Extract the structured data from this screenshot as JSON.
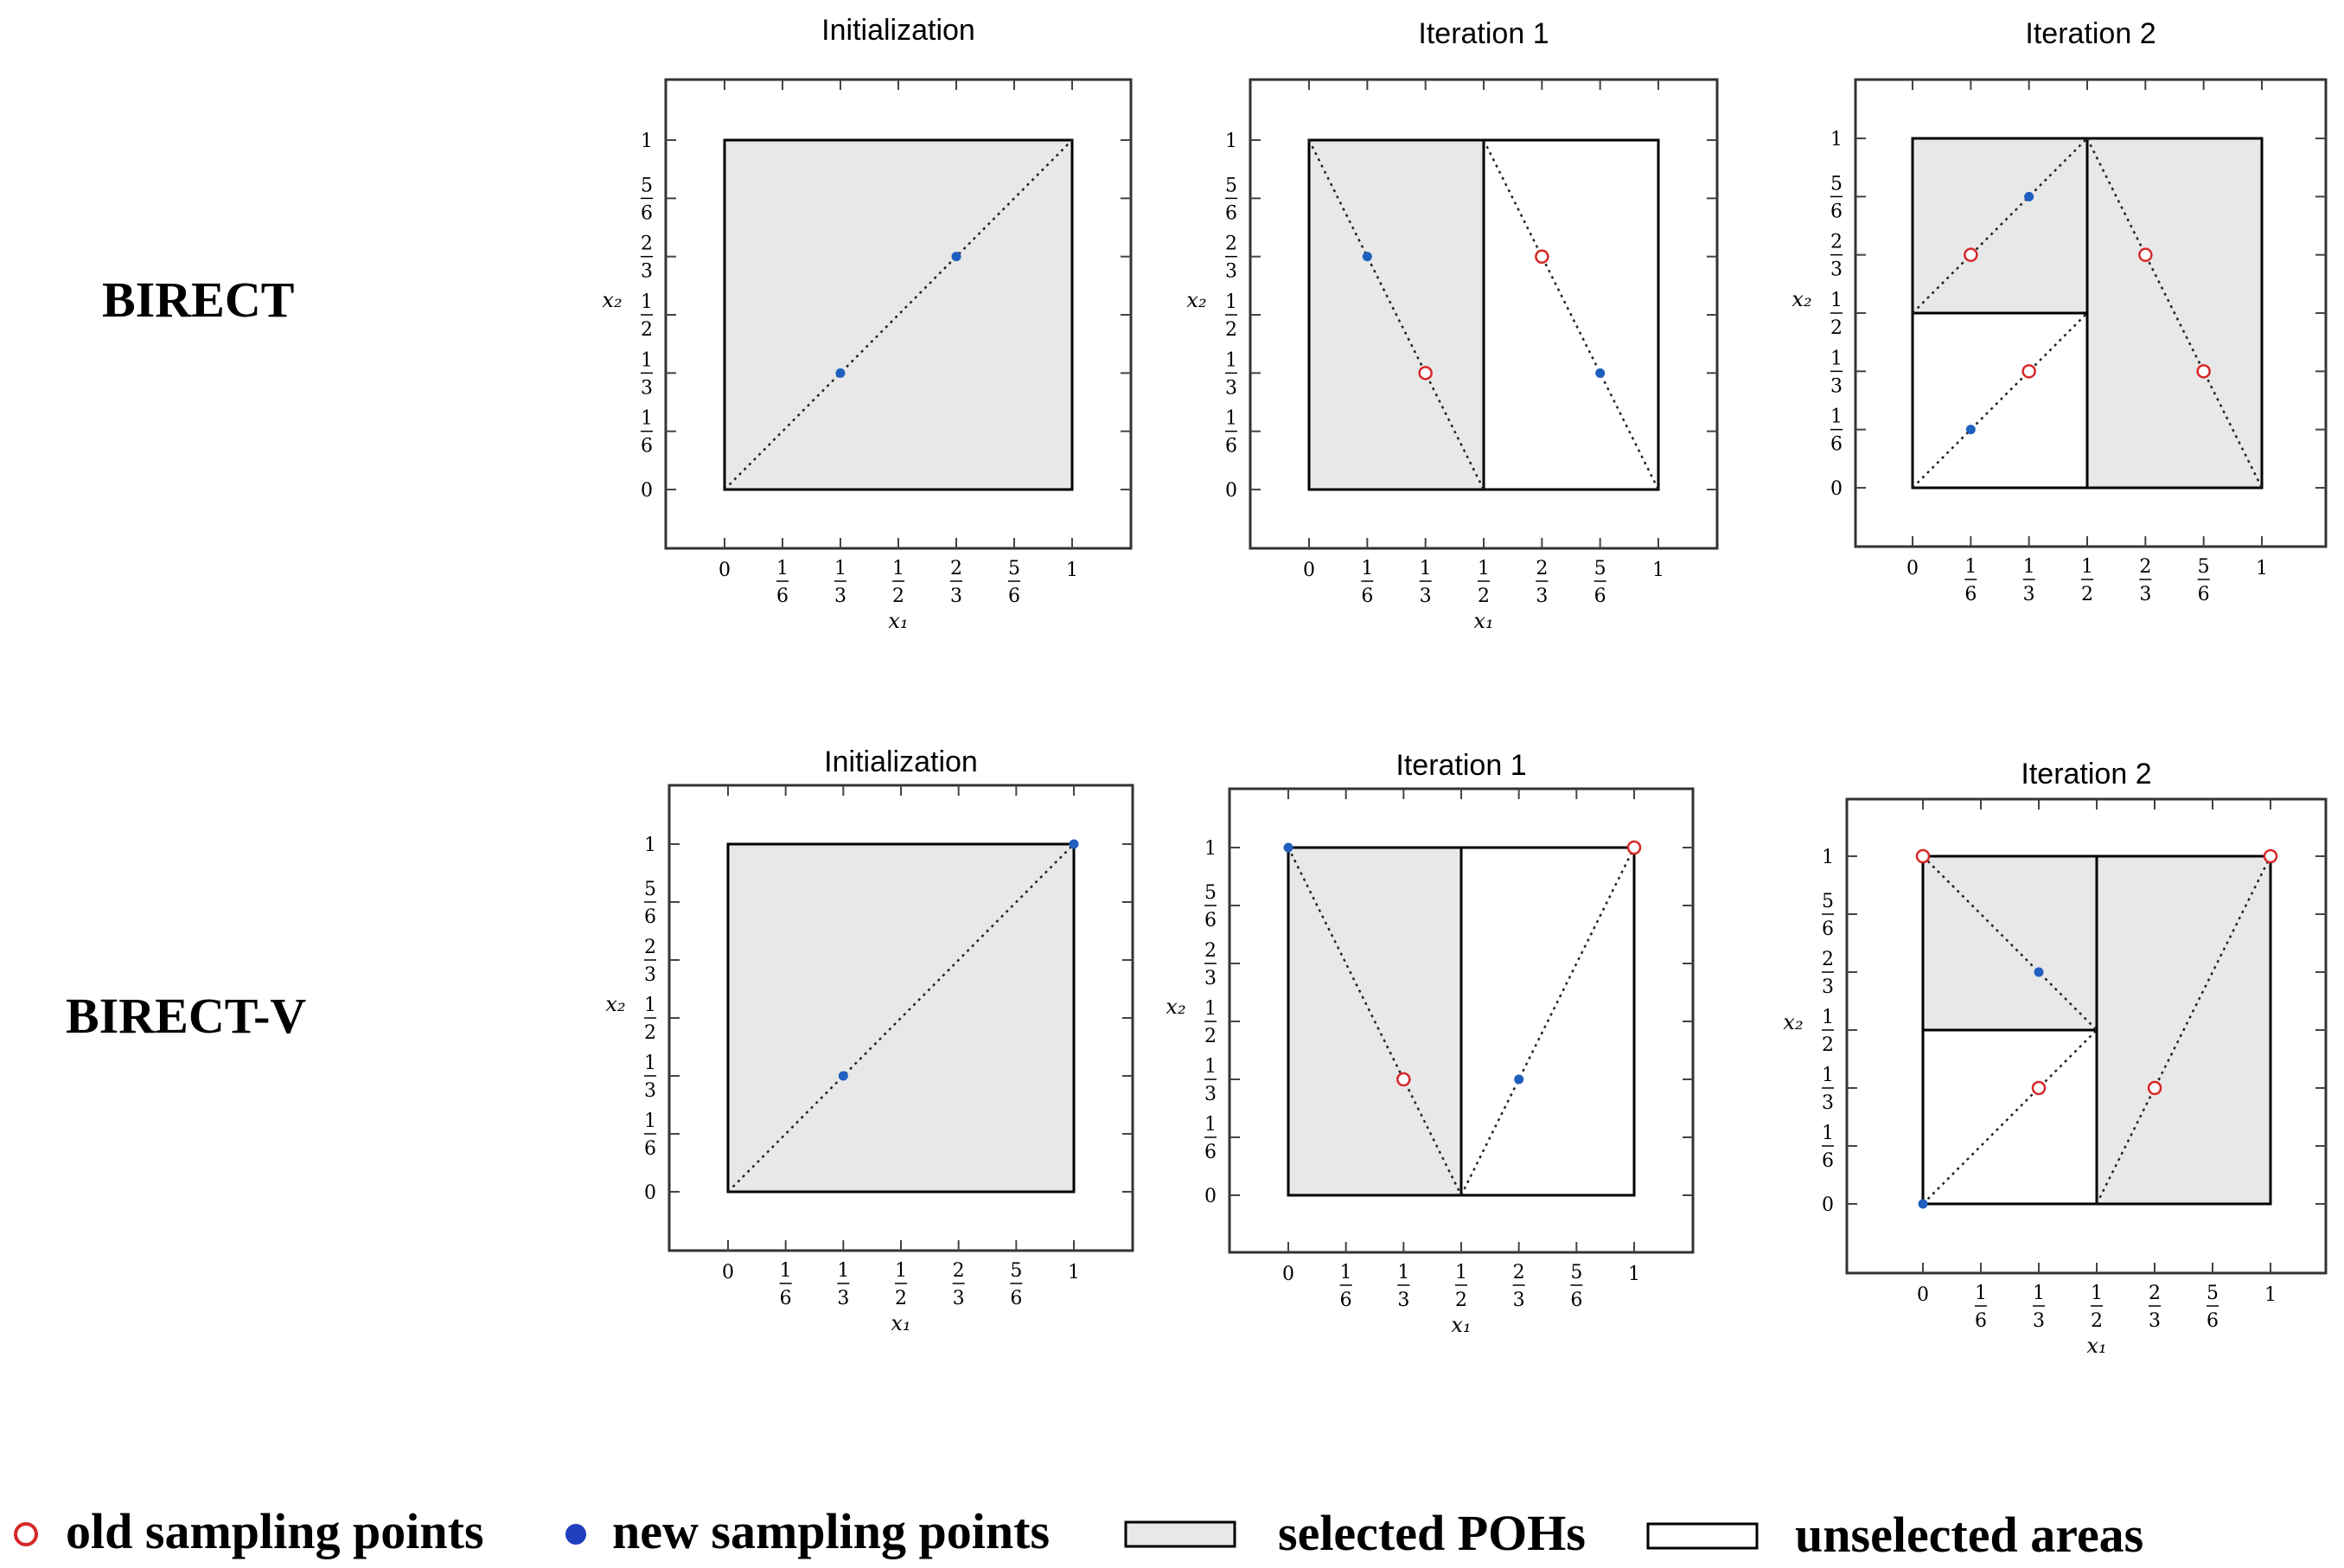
{
  "rows": [
    {
      "label": "BIRECT",
      "panels": [
        {
          "title": "Initialization",
          "x_label": "x1",
          "y_label": "x2",
          "selected": [
            [
              0,
              0,
              1,
              1
            ]
          ],
          "unselected": [],
          "diagonals": [
            [
              0,
              0,
              1,
              1
            ]
          ],
          "old_points": [],
          "new_points": [
            [
              0.3333,
              0.3333
            ],
            [
              0.6667,
              0.6667
            ]
          ]
        },
        {
          "title": "Iteration 1",
          "x_label": "x1",
          "y_label": "x2",
          "selected": [
            [
              0,
              0,
              0.5,
              1
            ]
          ],
          "unselected": [
            [
              0.5,
              0,
              1,
              1
            ]
          ],
          "diagonals": [
            [
              0,
              1,
              0.5,
              0
            ],
            [
              0.5,
              1,
              1,
              0
            ]
          ],
          "old_points": [
            [
              0.3333,
              0.3333
            ],
            [
              0.6667,
              0.6667
            ]
          ],
          "new_points": [
            [
              0.1667,
              0.6667
            ],
            [
              0.8333,
              0.3333
            ]
          ]
        },
        {
          "title": "Iteration 2",
          "x_label": "",
          "y_label": "x2",
          "selected": [
            [
              0,
              0.5,
              0.5,
              1
            ],
            [
              0.5,
              0,
              1,
              1
            ]
          ],
          "unselected": [
            [
              0,
              0,
              0.5,
              0.5
            ]
          ],
          "diagonals": [
            [
              0,
              0.5,
              0.5,
              1
            ],
            [
              0,
              0,
              0.5,
              0.5
            ],
            [
              0.5,
              1,
              1,
              0
            ]
          ],
          "old_points": [
            [
              0.1667,
              0.6667
            ],
            [
              0.3333,
              0.3333
            ],
            [
              0.6667,
              0.6667
            ],
            [
              0.8333,
              0.3333
            ]
          ],
          "new_points": [
            [
              0.3333,
              0.8333
            ],
            [
              0.1667,
              0.1667
            ]
          ]
        }
      ]
    },
    {
      "label": "BIRECT-V",
      "panels": [
        {
          "title": "Initialization",
          "x_label": "x1",
          "y_label": "x2",
          "selected": [
            [
              0,
              0,
              1,
              1
            ]
          ],
          "unselected": [],
          "diagonals": [
            [
              0,
              0,
              1,
              1
            ]
          ],
          "old_points": [],
          "new_points": [
            [
              0.3333,
              0.3333
            ],
            [
              1,
              1
            ]
          ]
        },
        {
          "title": "Iteration 1",
          "x_label": "x1",
          "y_label": "x2",
          "selected": [
            [
              0,
              0,
              0.5,
              1
            ]
          ],
          "unselected": [
            [
              0.5,
              0,
              1,
              1
            ]
          ],
          "diagonals": [
            [
              0,
              1,
              0.5,
              0
            ],
            [
              0.5,
              0,
              1,
              1
            ]
          ],
          "old_points": [
            [
              0.3333,
              0.3333
            ],
            [
              1,
              1
            ]
          ],
          "new_points": [
            [
              0,
              1
            ],
            [
              0.6667,
              0.3333
            ]
          ]
        },
        {
          "title": "Iteration 2",
          "x_label": "x1",
          "y_label": "x2",
          "selected": [
            [
              0,
              0.5,
              0.5,
              1
            ],
            [
              0.5,
              0,
              1,
              1
            ]
          ],
          "unselected": [
            [
              0,
              0,
              0.5,
              0.5
            ]
          ],
          "diagonals": [
            [
              0,
              1,
              0.5,
              0.5
            ],
            [
              0,
              0,
              0.5,
              0.5
            ],
            [
              0.5,
              0,
              1,
              1
            ]
          ],
          "old_points": [
            [
              0,
              1
            ],
            [
              1,
              1
            ],
            [
              0.3333,
              0.3333
            ],
            [
              0.6667,
              0.3333
            ]
          ],
          "new_points": [
            [
              0.3333,
              0.6667
            ],
            [
              0,
              0
            ]
          ]
        }
      ]
    }
  ],
  "ticks": [
    {
      "v": 0,
      "num": "0",
      "den": ""
    },
    {
      "v": 0.16667,
      "num": "1",
      "den": "6"
    },
    {
      "v": 0.33333,
      "num": "1",
      "den": "3"
    },
    {
      "v": 0.5,
      "num": "1",
      "den": "2"
    },
    {
      "v": 0.66667,
      "num": "2",
      "den": "3"
    },
    {
      "v": 0.83333,
      "num": "5",
      "den": "6"
    },
    {
      "v": 1,
      "num": "1",
      "den": ""
    }
  ],
  "legend": {
    "old_points": "old sampling points",
    "new_points": "new sampling points",
    "selected": "selected POHs",
    "unselected": "unselected areas"
  },
  "colors": {
    "selected_fill": "#e8e8e8",
    "old_point": "#d62728",
    "new_point": "#1f5fbf",
    "frame": "#333333"
  }
}
